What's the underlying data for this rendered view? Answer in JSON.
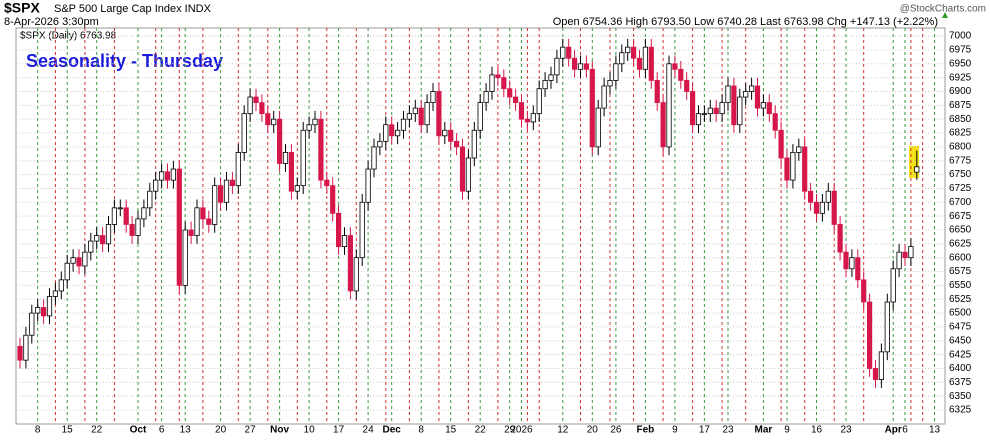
{
  "header": {
    "symbol": "$SPX",
    "name": "S&P 500 Large Cap Index INDX",
    "datetime": "8-Apr-2026 3:30pm",
    "quote": "Open 6754.36 High 6793.50 Low 6740.28 Last 6763.98 Chg +147.13 (+2.22%)",
    "credit": "@StockCharts.com"
  },
  "chart_data": {
    "type": "candlestick",
    "legend": "$SPX (Daily) 6763.98",
    "annotation": "Seasonality - Thursday",
    "up_color": "#000000",
    "down_color": "#d6174a",
    "annotation_color": "#1a1adb",
    "grid": true,
    "ylim": [
      6307,
      7011
    ],
    "yticks": [
      6325,
      6350,
      6375,
      6400,
      6425,
      6450,
      6475,
      6500,
      6525,
      6550,
      6575,
      6600,
      6625,
      6650,
      6675,
      6700,
      6725,
      6750,
      6775,
      6800,
      6825,
      6850,
      6875,
      6900,
      6925,
      6950,
      6975,
      7000
    ],
    "categories": [
      null,
      null,
      null,
      "8",
      null,
      null,
      null,
      null,
      "15",
      null,
      null,
      null,
      null,
      "22",
      null,
      null,
      null,
      null,
      null,
      null,
      "Oct",
      null,
      null,
      null,
      "6",
      null,
      null,
      null,
      "13",
      null,
      null,
      null,
      null,
      null,
      "20",
      null,
      null,
      null,
      null,
      "27",
      null,
      null,
      null,
      null,
      "Nov",
      null,
      null,
      null,
      null,
      "10",
      null,
      null,
      null,
      null,
      "17",
      null,
      null,
      null,
      null,
      "24",
      null,
      null,
      null,
      "Dec",
      null,
      null,
      null,
      null,
      "8",
      null,
      null,
      null,
      null,
      "15",
      null,
      null,
      null,
      null,
      "22",
      null,
      null,
      null,
      null,
      "29",
      null,
      "2026",
      null,
      null,
      null,
      null,
      null,
      null,
      "12",
      null,
      null,
      null,
      null,
      "20",
      null,
      null,
      null,
      "26",
      null,
      null,
      null,
      null,
      "Feb",
      null,
      null,
      null,
      null,
      "9",
      null,
      null,
      null,
      null,
      "17",
      null,
      null,
      null,
      "23",
      null,
      null,
      null,
      null,
      null,
      "Mar",
      null,
      null,
      null,
      "9",
      null,
      null,
      null,
      null,
      "16",
      null,
      null,
      null,
      null,
      "23",
      null,
      null,
      null,
      null,
      null,
      null,
      null,
      "Apr",
      null,
      "6",
      null,
      null,
      null,
      null,
      "13"
    ],
    "open": [
      6440,
      6415,
      6460,
      6500,
      6510,
      6495,
      6530,
      6540,
      6560,
      6590,
      6600,
      6585,
      6610,
      6630,
      6640,
      6625,
      6660,
      6690,
      6690,
      6660,
      6640,
      6670,
      6690,
      6720,
      6740,
      6755,
      6740,
      6760,
      6550,
      6650,
      6640,
      6690,
      6670,
      6660,
      6730,
      6700,
      6740,
      6730,
      6790,
      6860,
      6890,
      6880,
      6860,
      6840,
      6850,
      6770,
      6790,
      6720,
      6730,
      6830,
      6840,
      6850,
      6740,
      6730,
      6680,
      6620,
      6640,
      6540,
      6600,
      6700,
      6760,
      6800,
      6810,
      6840,
      6820,
      6830,
      6850,
      6860,
      6870,
      6840,
      6880,
      6900,
      6820,
      6830,
      6810,
      6800,
      6720,
      6780,
      6830,
      6880,
      6900,
      6930,
      6925,
      6905,
      6890,
      6880,
      6850,
      6845,
      6860,
      6905,
      6920,
      6930,
      6960,
      6980,
      6960,
      6940,
      6950,
      6940,
      6800,
      6870,
      6910,
      6920,
      6950,
      6970,
      6980,
      6960,
      6940,
      6980,
      6920,
      6880,
      6800,
      6950,
      6940,
      6920,
      6900,
      6840,
      6860,
      6860,
      6870,
      6860,
      6880,
      6910,
      6840,
      6890,
      6900,
      6910,
      6870,
      6880,
      6860,
      6830,
      6780,
      6740,
      6790,
      6800,
      6720,
      6700,
      6680,
      6700,
      6720,
      6660,
      6610,
      6580,
      6600,
      6560,
      6520,
      6400,
      6380,
      6430,
      6520,
      6580,
      6610,
      6600,
      6754.36,
      null,
      null,
      null
    ],
    "high": [
      6455,
      6475,
      6515,
      6525,
      6525,
      6545,
      6555,
      6575,
      6605,
      6615,
      6615,
      6625,
      6645,
      6655,
      6655,
      6675,
      6705,
      6705,
      6705,
      6675,
      6685,
      6705,
      6735,
      6755,
      6770,
      6770,
      6775,
      6775,
      6665,
      6665,
      6705,
      6705,
      6685,
      6745,
      6745,
      6755,
      6755,
      6805,
      6875,
      6905,
      6905,
      6895,
      6875,
      6865,
      6865,
      6805,
      6805,
      6745,
      6845,
      6855,
      6865,
      6865,
      6755,
      6745,
      6695,
      6655,
      6655,
      6615,
      6715,
      6775,
      6815,
      6825,
      6855,
      6855,
      6845,
      6865,
      6875,
      6885,
      6885,
      6895,
      6915,
      6915,
      6845,
      6845,
      6825,
      6815,
      6795,
      6845,
      6895,
      6915,
      6945,
      6945,
      6940,
      6920,
      6905,
      6895,
      6865,
      6875,
      6920,
      6935,
      6945,
      6975,
      6995,
      6995,
      6975,
      6965,
      6965,
      6955,
      6885,
      6925,
      6935,
      6965,
      6985,
      6995,
      6995,
      6975,
      6995,
      6995,
      6935,
      6895,
      6965,
      6965,
      6955,
      6935,
      6915,
      6875,
      6875,
      6885,
      6885,
      6895,
      6925,
      6925,
      6905,
      6915,
      6925,
      6925,
      6895,
      6895,
      6875,
      6845,
      6795,
      6805,
      6815,
      6815,
      6735,
      6715,
      6715,
      6735,
      6735,
      6675,
      6625,
      6615,
      6615,
      6575,
      6535,
      6415,
      6445,
      6535,
      6595,
      6625,
      6625,
      6635,
      6793.5,
      null,
      null,
      null
    ],
    "low": [
      6400,
      6400,
      6445,
      6485,
      6480,
      6480,
      6515,
      6525,
      6545,
      6575,
      6570,
      6570,
      6595,
      6615,
      6610,
      6610,
      6645,
      6675,
      6645,
      6625,
      6625,
      6655,
      6675,
      6705,
      6725,
      6725,
      6725,
      6535,
      6535,
      6625,
      6625,
      6655,
      6645,
      6645,
      6685,
      6685,
      6715,
      6715,
      6775,
      6845,
      6865,
      6845,
      6825,
      6825,
      6755,
      6755,
      6705,
      6705,
      6715,
      6815,
      6825,
      6725,
      6715,
      6665,
      6605,
      6605,
      6525,
      6525,
      6585,
      6685,
      6745,
      6785,
      6795,
      6805,
      6805,
      6815,
      6835,
      6845,
      6825,
      6825,
      6865,
      6805,
      6805,
      6795,
      6785,
      6705,
      6705,
      6765,
      6815,
      6865,
      6885,
      6910,
      6890,
      6875,
      6865,
      6835,
      6830,
      6830,
      6845,
      6890,
      6905,
      6915,
      6945,
      6945,
      6925,
      6925,
      6925,
      6785,
      6785,
      6855,
      6895,
      6905,
      6935,
      6955,
      6945,
      6925,
      6925,
      6905,
      6865,
      6785,
      6785,
      6925,
      6905,
      6885,
      6825,
      6825,
      6845,
      6845,
      6845,
      6845,
      6865,
      6825,
      6825,
      6875,
      6885,
      6855,
      6855,
      6845,
      6815,
      6765,
      6725,
      6725,
      6775,
      6705,
      6685,
      6665,
      6665,
      6685,
      6645,
      6595,
      6565,
      6565,
      6545,
      6505,
      6385,
      6365,
      6365,
      6415,
      6505,
      6565,
      6585,
      6585,
      6740.28,
      null,
      null,
      null
    ],
    "close": [
      6415,
      6460,
      6500,
      6510,
      6495,
      6530,
      6540,
      6560,
      6590,
      6600,
      6585,
      6610,
      6630,
      6640,
      6625,
      6660,
      6690,
      6690,
      6660,
      6640,
      6670,
      6690,
      6720,
      6740,
      6755,
      6740,
      6760,
      6550,
      6650,
      6640,
      6690,
      6670,
      6660,
      6730,
      6700,
      6740,
      6730,
      6790,
      6860,
      6890,
      6880,
      6860,
      6840,
      6850,
      6770,
      6790,
      6720,
      6730,
      6830,
      6840,
      6850,
      6740,
      6730,
      6680,
      6620,
      6640,
      6540,
      6600,
      6700,
      6760,
      6800,
      6810,
      6840,
      6820,
      6830,
      6850,
      6860,
      6870,
      6840,
      6880,
      6900,
      6820,
      6830,
      6810,
      6800,
      6720,
      6780,
      6830,
      6880,
      6900,
      6930,
      6925,
      6905,
      6890,
      6880,
      6850,
      6845,
      6860,
      6905,
      6920,
      6930,
      6960,
      6980,
      6960,
      6940,
      6950,
      6940,
      6800,
      6870,
      6910,
      6920,
      6950,
      6970,
      6980,
      6960,
      6940,
      6980,
      6920,
      6880,
      6800,
      6950,
      6940,
      6920,
      6900,
      6840,
      6860,
      6860,
      6870,
      6860,
      6880,
      6910,
      6840,
      6890,
      6900,
      6910,
      6870,
      6880,
      6860,
      6830,
      6780,
      6740,
      6790,
      6800,
      6720,
      6700,
      6680,
      6700,
      6720,
      6660,
      6610,
      6580,
      6600,
      6560,
      6520,
      6400,
      6380,
      6430,
      6520,
      6580,
      6610,
      6600,
      6620,
      6763.98,
      null,
      null,
      null
    ]
  }
}
